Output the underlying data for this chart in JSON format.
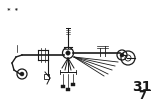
{
  "bg_color": "#ffffff",
  "fg_color": "#1a1a1a",
  "title_number": "31",
  "title_sub": "7",
  "asterisk_text": "* *",
  "fig_width": 1.6,
  "fig_height": 1.12,
  "dpi": 100
}
